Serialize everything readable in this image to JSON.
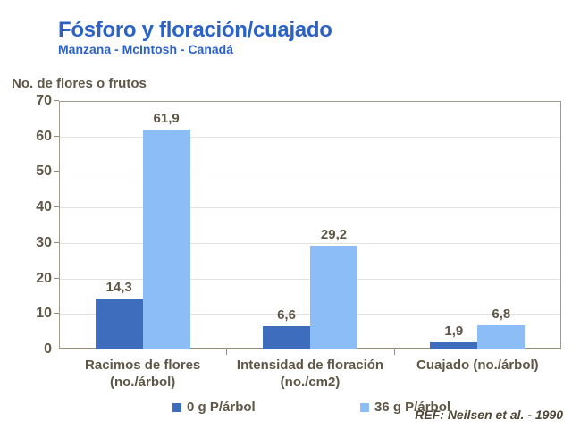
{
  "title": "Fósforo y floración/cuajado",
  "subtitle": "Manzana - McIntosh - Canadá",
  "axis_title": "No. de flores o frutos",
  "reference": "REF: Neilsen et al. - 1990",
  "colors": {
    "title_blue": "#2d62c5",
    "text_taupe": "#5e5646",
    "ref_text": "#4f4737",
    "series0": "#3f6dbd",
    "series1": "#8dbdf7",
    "gridline": "#e4e2de",
    "plot_border": "#a29a8b",
    "axis_line": "#958d7c"
  },
  "chart_data": {
    "type": "bar",
    "categories": [
      [
        "Racimos de flores",
        "(no./árbol)"
      ],
      [
        "Intensidad de floración",
        "(no./cm2)"
      ],
      [
        "Cuajado (no./árbol)"
      ]
    ],
    "series": [
      {
        "name": "0 g P/árbol",
        "color": "#3f6dbd",
        "values": [
          14.3,
          6.6,
          1.9
        ],
        "value_labels": [
          "14,3",
          "6,6",
          "1,9"
        ]
      },
      {
        "name": "36 g P/árbol",
        "color": "#8dbdf7",
        "values": [
          61.9,
          29.2,
          6.8
        ],
        "value_labels": [
          "61,9",
          "29,2",
          "6,8"
        ]
      }
    ],
    "ylabel": "No. de flores o frutos",
    "ylim": [
      0,
      70
    ],
    "yticks": [
      0,
      10,
      20,
      30,
      40,
      50,
      60,
      70
    ],
    "grid": true,
    "legend_position": "bottom"
  }
}
